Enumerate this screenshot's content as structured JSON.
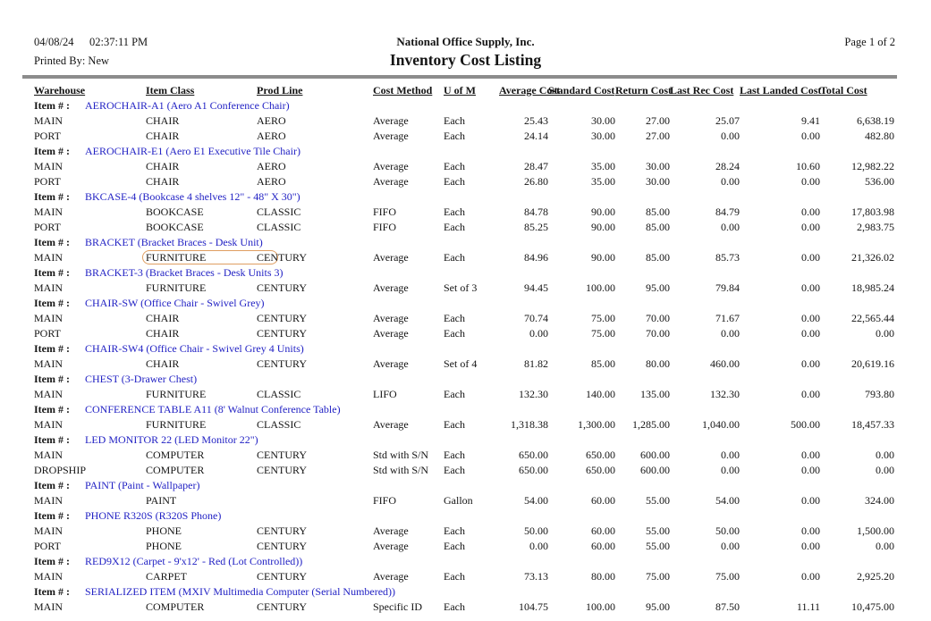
{
  "header": {
    "date": "04/08/24",
    "time": "02:37:11 PM",
    "printed_by": "Printed By: New",
    "company": "National Office Supply, Inc.",
    "title": "Inventory Cost Listing",
    "page": "Page 1 of  2"
  },
  "colors": {
    "item_link": "#2222c4",
    "separator": "#8c8c8c",
    "highlight_border": "#df9e62"
  },
  "table": {
    "item_row_label": "Item # :",
    "columns": [
      "Warehouse",
      "Item Class",
      "Prod Line",
      "Cost Method",
      "U of M",
      "Average Cost",
      "Standard Cost",
      "Return Cost",
      "Last Rec Cost",
      "Last Landed Cost",
      "Total Cost"
    ],
    "groups": [
      {
        "item": "AEROCHAIR-A1 (Aero A1 Conference Chair)",
        "rows": [
          {
            "warehouse": "MAIN",
            "item_class": "CHAIR",
            "prod_line": "AERO",
            "cost_method": "Average",
            "uom": "Each",
            "average_cost": "25.43",
            "standard_cost": "30.00",
            "return_cost": "27.00",
            "last_rec_cost": "25.07",
            "last_landed_cost": "9.41",
            "total_cost": "6,638.19"
          },
          {
            "warehouse": "PORT",
            "item_class": "CHAIR",
            "prod_line": "AERO",
            "cost_method": "Average",
            "uom": "Each",
            "average_cost": "24.14",
            "standard_cost": "30.00",
            "return_cost": "27.00",
            "last_rec_cost": "0.00",
            "last_landed_cost": "0.00",
            "total_cost": "482.80"
          }
        ]
      },
      {
        "item": "AEROCHAIR-E1 (Aero E1 Executive Tile Chair)",
        "rows": [
          {
            "warehouse": "MAIN",
            "item_class": "CHAIR",
            "prod_line": "AERO",
            "cost_method": "Average",
            "uom": "Each",
            "average_cost": "28.47",
            "standard_cost": "35.00",
            "return_cost": "30.00",
            "last_rec_cost": "28.24",
            "last_landed_cost": "10.60",
            "total_cost": "12,982.22"
          },
          {
            "warehouse": "PORT",
            "item_class": "CHAIR",
            "prod_line": "AERO",
            "cost_method": "Average",
            "uom": "Each",
            "average_cost": "26.80",
            "standard_cost": "35.00",
            "return_cost": "30.00",
            "last_rec_cost": "0.00",
            "last_landed_cost": "0.00",
            "total_cost": "536.00"
          }
        ]
      },
      {
        "item": "BKCASE-4 (Bookcase 4 shelves 12\" - 48\" X 30\")",
        "rows": [
          {
            "warehouse": "MAIN",
            "item_class": "BOOKCASE",
            "prod_line": "CLASSIC",
            "cost_method": "FIFO",
            "uom": "Each",
            "average_cost": "84.78",
            "standard_cost": "90.00",
            "return_cost": "85.00",
            "last_rec_cost": "84.79",
            "last_landed_cost": "0.00",
            "total_cost": "17,803.98"
          },
          {
            "warehouse": "PORT",
            "item_class": "BOOKCASE",
            "prod_line": "CLASSIC",
            "cost_method": "FIFO",
            "uom": "Each",
            "average_cost": "85.25",
            "standard_cost": "90.00",
            "return_cost": "85.00",
            "last_rec_cost": "0.00",
            "last_landed_cost": "0.00",
            "total_cost": "2,983.75"
          }
        ]
      },
      {
        "item": "BRACKET (Bracket Braces - Desk Unit)",
        "rows": [
          {
            "warehouse": "MAIN",
            "item_class": "FURNITURE",
            "prod_line": "CENTURY",
            "cost_method": "Average",
            "uom": "Each",
            "average_cost": "84.96",
            "standard_cost": "90.00",
            "return_cost": "85.00",
            "last_rec_cost": "85.73",
            "last_landed_cost": "0.00",
            "total_cost": "21,326.02",
            "highlight_item_class": true
          }
        ]
      },
      {
        "item": "BRACKET-3 (Bracket Braces - Desk Units 3)",
        "rows": [
          {
            "warehouse": "MAIN",
            "item_class": "FURNITURE",
            "prod_line": "CENTURY",
            "cost_method": "Average",
            "uom": "Set of 3",
            "average_cost": "94.45",
            "standard_cost": "100.00",
            "return_cost": "95.00",
            "last_rec_cost": "79.84",
            "last_landed_cost": "0.00",
            "total_cost": "18,985.24"
          }
        ]
      },
      {
        "item": "CHAIR-SW (Office Chair - Swivel Grey)",
        "rows": [
          {
            "warehouse": "MAIN",
            "item_class": "CHAIR",
            "prod_line": "CENTURY",
            "cost_method": "Average",
            "uom": "Each",
            "average_cost": "70.74",
            "standard_cost": "75.00",
            "return_cost": "70.00",
            "last_rec_cost": "71.67",
            "last_landed_cost": "0.00",
            "total_cost": "22,565.44"
          },
          {
            "warehouse": "PORT",
            "item_class": "CHAIR",
            "prod_line": "CENTURY",
            "cost_method": "Average",
            "uom": "Each",
            "average_cost": "0.00",
            "standard_cost": "75.00",
            "return_cost": "70.00",
            "last_rec_cost": "0.00",
            "last_landed_cost": "0.00",
            "total_cost": "0.00"
          }
        ]
      },
      {
        "item": "CHAIR-SW4 (Office Chair - Swivel Grey 4 Units)",
        "rows": [
          {
            "warehouse": "MAIN",
            "item_class": "CHAIR",
            "prod_line": "CENTURY",
            "cost_method": "Average",
            "uom": "Set of 4",
            "average_cost": "81.82",
            "standard_cost": "85.00",
            "return_cost": "80.00",
            "last_rec_cost": "460.00",
            "last_landed_cost": "0.00",
            "total_cost": "20,619.16"
          }
        ]
      },
      {
        "item": "CHEST (3-Drawer Chest)",
        "rows": [
          {
            "warehouse": "MAIN",
            "item_class": "FURNITURE",
            "prod_line": "CLASSIC",
            "cost_method": "LIFO",
            "uom": "Each",
            "average_cost": "132.30",
            "standard_cost": "140.00",
            "return_cost": "135.00",
            "last_rec_cost": "132.30",
            "last_landed_cost": "0.00",
            "total_cost": "793.80"
          }
        ]
      },
      {
        "item": "CONFERENCE TABLE A11 (8' Walnut Conference Table)",
        "rows": [
          {
            "warehouse": "MAIN",
            "item_class": "FURNITURE",
            "prod_line": "CLASSIC",
            "cost_method": "Average",
            "uom": "Each",
            "average_cost": "1,318.38",
            "standard_cost": "1,300.00",
            "return_cost": "1,285.00",
            "last_rec_cost": "1,040.00",
            "last_landed_cost": "500.00",
            "total_cost": "18,457.33"
          }
        ]
      },
      {
        "item": "LED MONITOR 22 (LED Monitor 22\")",
        "rows": [
          {
            "warehouse": "MAIN",
            "item_class": "COMPUTER",
            "prod_line": "CENTURY",
            "cost_method": "Std with S/N",
            "uom": "Each",
            "average_cost": "650.00",
            "standard_cost": "650.00",
            "return_cost": "600.00",
            "last_rec_cost": "0.00",
            "last_landed_cost": "0.00",
            "total_cost": "0.00"
          },
          {
            "warehouse": "DROPSHIP",
            "item_class": "COMPUTER",
            "prod_line": "CENTURY",
            "cost_method": "Std with S/N",
            "uom": "Each",
            "average_cost": "650.00",
            "standard_cost": "650.00",
            "return_cost": "600.00",
            "last_rec_cost": "0.00",
            "last_landed_cost": "0.00",
            "total_cost": "0.00"
          }
        ]
      },
      {
        "item": "PAINT (Paint - Wallpaper)",
        "rows": [
          {
            "warehouse": "MAIN",
            "item_class": "PAINT",
            "prod_line": "",
            "cost_method": "FIFO",
            "uom": "Gallon",
            "average_cost": "54.00",
            "standard_cost": "60.00",
            "return_cost": "55.00",
            "last_rec_cost": "54.00",
            "last_landed_cost": "0.00",
            "total_cost": "324.00"
          }
        ]
      },
      {
        "item": "PHONE R320S (R320S Phone)",
        "rows": [
          {
            "warehouse": "MAIN",
            "item_class": "PHONE",
            "prod_line": "CENTURY",
            "cost_method": "Average",
            "uom": "Each",
            "average_cost": "50.00",
            "standard_cost": "60.00",
            "return_cost": "55.00",
            "last_rec_cost": "50.00",
            "last_landed_cost": "0.00",
            "total_cost": "1,500.00"
          },
          {
            "warehouse": "PORT",
            "item_class": "PHONE",
            "prod_line": "CENTURY",
            "cost_method": "Average",
            "uom": "Each",
            "average_cost": "0.00",
            "standard_cost": "60.00",
            "return_cost": "55.00",
            "last_rec_cost": "0.00",
            "last_landed_cost": "0.00",
            "total_cost": "0.00"
          }
        ]
      },
      {
        "item": "RED9X12 (Carpet - 9'x12' - Red (Lot Controlled))",
        "rows": [
          {
            "warehouse": "MAIN",
            "item_class": "CARPET",
            "prod_line": "CENTURY",
            "cost_method": "Average",
            "uom": "Each",
            "average_cost": "73.13",
            "standard_cost": "80.00",
            "return_cost": "75.00",
            "last_rec_cost": "75.00",
            "last_landed_cost": "0.00",
            "total_cost": "2,925.20"
          }
        ]
      },
      {
        "item": "SERIALIZED ITEM (MXIV Multimedia Computer (Serial Numbered))",
        "rows": [
          {
            "warehouse": "MAIN",
            "item_class": "COMPUTER",
            "prod_line": "CENTURY",
            "cost_method": "Specific ID",
            "uom": "Each",
            "average_cost": "104.75",
            "standard_cost": "100.00",
            "return_cost": "95.00",
            "last_rec_cost": "87.50",
            "last_landed_cost": "11.11",
            "total_cost": "10,475.00"
          }
        ]
      }
    ]
  }
}
